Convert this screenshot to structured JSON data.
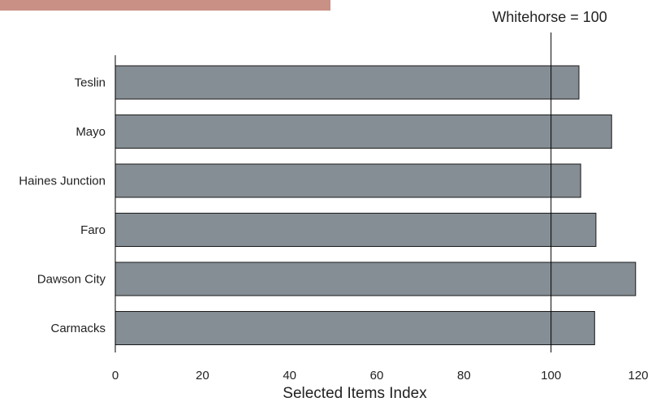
{
  "colors": {
    "banner": "#c99085",
    "bar_fill": "#858e94",
    "bar_stroke": "#1a1a1a",
    "axis": "#000000"
  },
  "chart_data": {
    "type": "bar",
    "orientation": "horizontal",
    "categories": [
      "Teslin",
      "Mayo",
      "Haines Junction",
      "Faro",
      "Dawson City",
      "Carmacks"
    ],
    "values": [
      106.4,
      113.9,
      106.8,
      110.3,
      119.4,
      110.0
    ],
    "xlabel": "Selected Items Index",
    "ylabel": "",
    "xlim": [
      0,
      120
    ],
    "xticks": [
      0,
      20,
      40,
      60,
      80,
      100,
      120
    ],
    "reference_line": {
      "value": 100,
      "label": "Whitehorse = 100"
    },
    "grid": false,
    "legend": "none"
  }
}
